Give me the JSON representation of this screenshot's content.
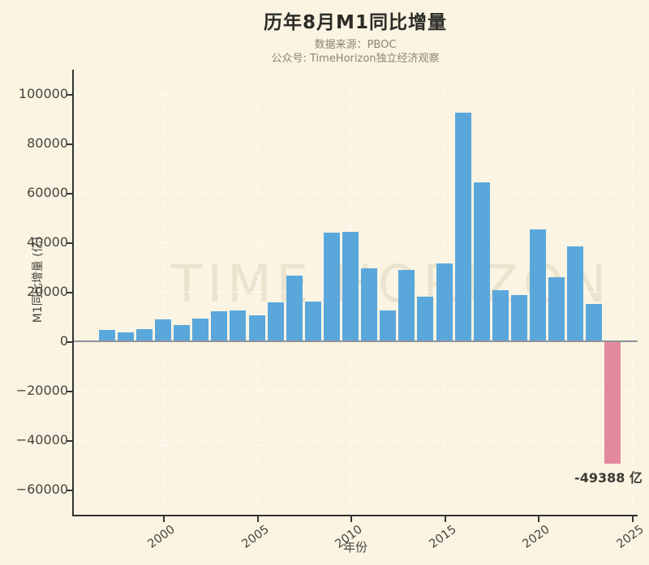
{
  "header": {
    "title": "历年8月M1同比增量",
    "subtitle1": "数据来源：PBOC",
    "subtitle2": "公众号: TimeHorizon独立经济观察"
  },
  "watermark": "TIME HORIZON",
  "axes": {
    "xlabel": "年份",
    "ylabel": "M1同比增量 (亿)"
  },
  "annotation": {
    "text": "-49388 亿",
    "year": 2024
  },
  "colors": {
    "background": "#FBF4E2",
    "bar_positive": "#5AA7DC",
    "bar_negative": "#E2899E",
    "grid": "rgba(255,255,255,0.95)",
    "spine": "#33332F",
    "zero_line": "#8D9298",
    "title": "#2B2B27",
    "subtitle": "#8C8474",
    "tick_label": "#45453F"
  },
  "chart_data": {
    "type": "bar",
    "title": "历年8月M1同比增量",
    "xlabel": "年份",
    "ylabel": "M1同比增量 (亿)",
    "x": [
      1997,
      1998,
      1999,
      2000,
      2001,
      2002,
      2003,
      2004,
      2005,
      2006,
      2007,
      2008,
      2009,
      2010,
      2011,
      2012,
      2013,
      2014,
      2015,
      2016,
      2017,
      2018,
      2019,
      2020,
      2021,
      2022,
      2023,
      2024
    ],
    "values": [
      4600,
      3600,
      5000,
      9000,
      6700,
      9100,
      12100,
      12400,
      10500,
      15700,
      26400,
      16100,
      43900,
      44300,
      29500,
      12600,
      28700,
      17900,
      31400,
      92500,
      64200,
      20500,
      18600,
      45200,
      26000,
      38300,
      15100,
      -49388
    ],
    "yticks": [
      -60000,
      -40000,
      -20000,
      0,
      20000,
      40000,
      60000,
      80000,
      100000
    ],
    "xticks": [
      2000,
      2005,
      2010,
      2015,
      2020,
      2025
    ],
    "ylim": [
      -70000,
      110000
    ],
    "grid": true,
    "legend": false,
    "annotation": {
      "x": 2024,
      "text": "-49388 亿"
    }
  }
}
